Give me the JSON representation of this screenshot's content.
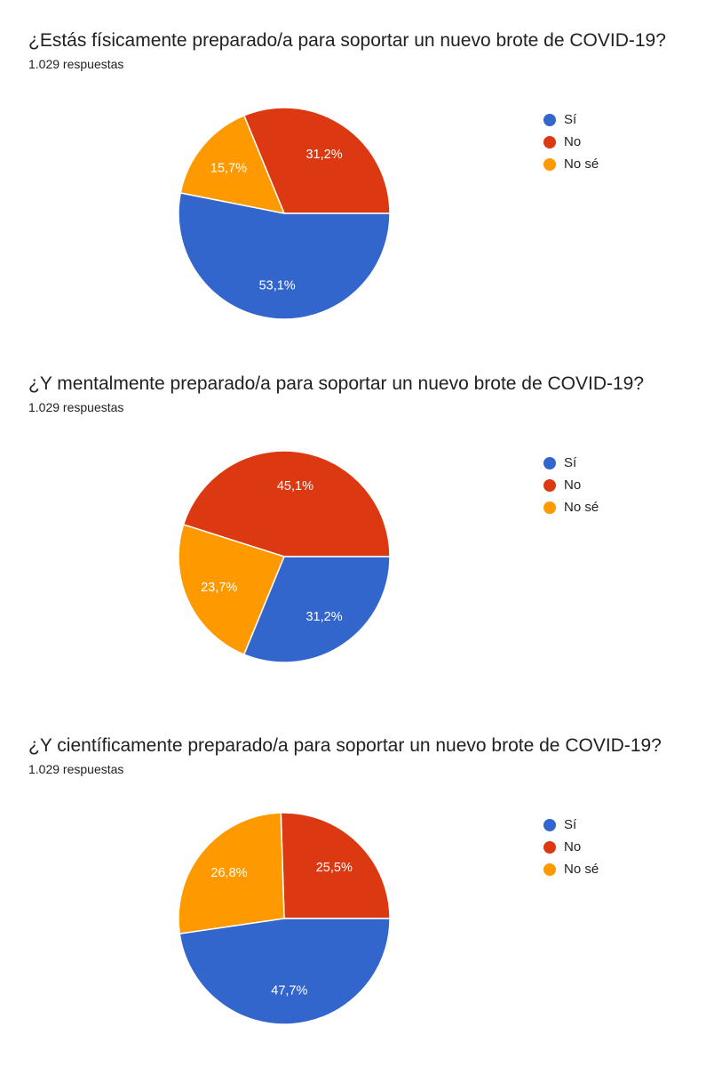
{
  "chart_data": [
    {
      "type": "pie",
      "title": "¿Estás físicamente preparado/a para soportar un nuevo brote de COVID-19?",
      "subtitle": "1.029 respuestas",
      "categories": [
        "Sí",
        "No",
        "No sé"
      ],
      "values": [
        53.1,
        31.2,
        15.7
      ],
      "value_labels": [
        "53,1%",
        "31,2%",
        "15,7%"
      ],
      "colors": [
        "#3366cc",
        "#dc3912",
        "#ff9900"
      ],
      "legend_position": "right"
    },
    {
      "type": "pie",
      "title": "¿Y mentalmente preparado/a para soportar un nuevo brote de COVID-19?",
      "subtitle": "1.029 respuestas",
      "categories": [
        "Sí",
        "No",
        "No sé"
      ],
      "values": [
        31.2,
        45.1,
        23.7
      ],
      "value_labels": [
        "31,2%",
        "45,1%",
        "23,7%"
      ],
      "colors": [
        "#3366cc",
        "#dc3912",
        "#ff9900"
      ],
      "legend_position": "right"
    },
    {
      "type": "pie",
      "title": "¿Y científicamente preparado/a para soportar un nuevo brote de COVID-19?",
      "subtitle": "1.029 respuestas",
      "categories": [
        "Sí",
        "No",
        "No sé"
      ],
      "values": [
        47.7,
        25.5,
        26.8
      ],
      "value_labels": [
        "47,7%",
        "25,5%",
        "26,8%"
      ],
      "colors": [
        "#3366cc",
        "#dc3912",
        "#ff9900"
      ],
      "legend_position": "right"
    }
  ]
}
